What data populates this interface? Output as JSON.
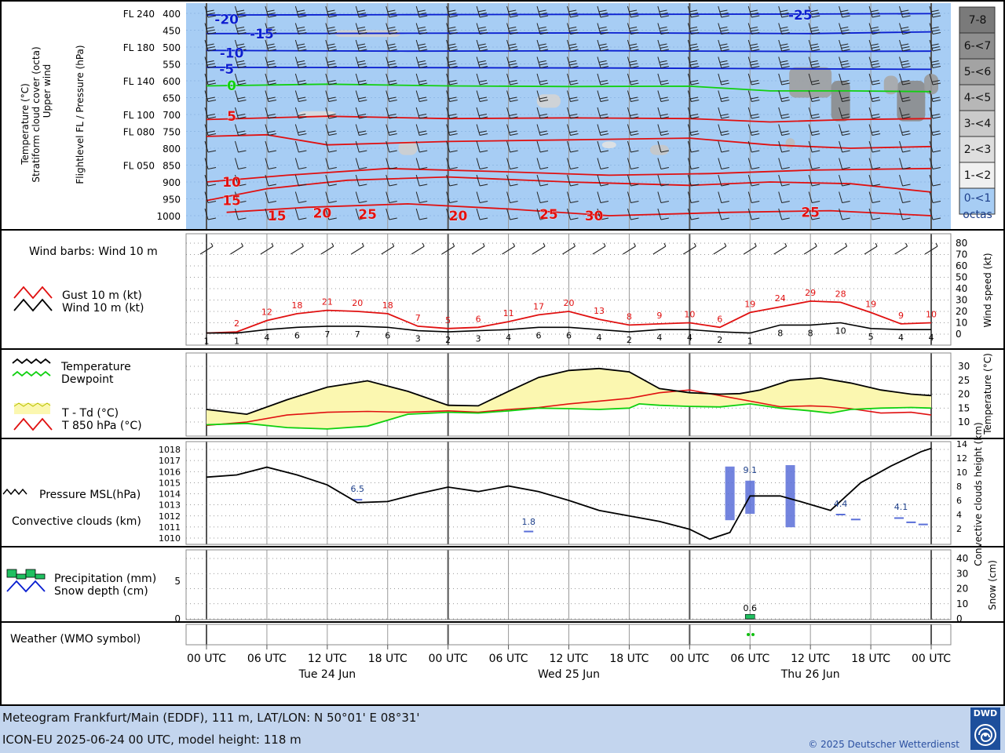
{
  "panels": {
    "upper": {
      "labels": [
        "Temperature (°C)",
        "Stratiform cloud cover (octa)",
        "Upper wind"
      ],
      "axis_label": "Flightlevel FL / Pressure (hPa)"
    },
    "wind": {
      "title": "Wind barbs: Wind 10 m",
      "legend_gust": "Gust 10 m (kt)",
      "legend_wind": "Wind 10 m (kt)",
      "axis_label": "Wind speed (kt)"
    },
    "temp": {
      "legend_t": "Temperature",
      "legend_td": "Dewpoint",
      "legend_spread": "T - Td (°C)",
      "legend_t850": "T 850 hPa (°C)",
      "axis_label": "Temperature (°C)"
    },
    "pressure": {
      "legend_p": "Pressure MSL(hPa)",
      "legend_conv": "Convective clouds (km)",
      "axis_label": "Convective clouds height (km)"
    },
    "precip": {
      "legend_precip": "Precipitation (mm)",
      "legend_snow": "Snow depth (cm)",
      "axis_label": "Snow (cm)"
    },
    "weather": {
      "title": "Weather (WMO symbol)"
    }
  },
  "time_axis": {
    "labels": [
      "00 UTC",
      "06 UTC",
      "12 UTC",
      "18 UTC",
      "00 UTC",
      "06 UTC",
      "12 UTC",
      "18 UTC",
      "00 UTC",
      "06 UTC",
      "12 UTC",
      "18 UTC",
      "00 UTC"
    ],
    "days": [
      "Tue 24 Jun",
      "Wed 25 Jun",
      "Thu 26 Jun"
    ]
  },
  "footer": {
    "line1": "Meteogram Frankfurt/Main (EDDF), 111 m, LAT/LON: N 50°01' E 08°31'",
    "line2": "ICON-EU 2025-06-24 00 UTC, model height: 118 m",
    "copyright": "© 2025 Deutscher Wetterdienst",
    "logo": "DWD"
  },
  "colors": {
    "sky": "#a7cdf4",
    "red": "#e01010",
    "green": "#10d010",
    "blue": "#0a1fd0",
    "spread": "#fbf7b0",
    "conv": "#5a6fd8",
    "precip": "#20c060"
  },
  "chart_data": [
    {
      "type": "line",
      "panel": "upper-air cross section",
      "pressure_levels": [
        400,
        450,
        500,
        550,
        600,
        650,
        700,
        750,
        800,
        850,
        900,
        950,
        1000
      ],
      "flight_levels": [
        {
          "p": 400,
          "fl": "FL 240"
        },
        {
          "p": 500,
          "fl": "FL 180"
        },
        {
          "p": 600,
          "fl": "FL 140"
        },
        {
          "p": 700,
          "fl": "FL 100"
        },
        {
          "p": 750,
          "fl": "FL 080"
        },
        {
          "p": 850,
          "fl": "FL 050"
        }
      ],
      "isotherm_labels": [
        "-20",
        "-15",
        "-10",
        "-5",
        "0",
        "5",
        "10",
        "15",
        "15",
        "20",
        "25",
        "20",
        "25",
        "30",
        "25",
        "-25"
      ],
      "cloud_scale": [
        "7-8",
        "6-<7",
        "5-<6",
        "4-<5",
        "3-<4",
        "2-<3",
        "1-<2",
        "0-<1",
        "octas"
      ],
      "cloud_colors": [
        "#7a7a7a",
        "#8e8e8e",
        "#a3a3a3",
        "#b7b7b7",
        "#cacaca",
        "#dedede",
        "#f0f0f0",
        "#a7cdf4"
      ]
    },
    {
      "type": "line",
      "panel": "wind 10 m",
      "x_hours": [
        0,
        6,
        12,
        18,
        24,
        30,
        36,
        42,
        48,
        54,
        60,
        66,
        72
      ],
      "y_ticks": [
        0,
        10,
        20,
        30,
        40,
        50,
        60,
        70,
        80
      ],
      "ylim": [
        0,
        80
      ],
      "gust": [
        {
          "h": 3,
          "v": 2
        },
        {
          "h": 6,
          "v": 12
        },
        {
          "h": 9,
          "v": 18
        },
        {
          "h": 12,
          "v": 21
        },
        {
          "h": 15,
          "v": 20
        },
        {
          "h": 18,
          "v": 18
        },
        {
          "h": 21,
          "v": 7
        },
        {
          "h": 24,
          "v": 5
        },
        {
          "h": 27,
          "v": 6
        },
        {
          "h": 30,
          "v": 11
        },
        {
          "h": 33,
          "v": 17
        },
        {
          "h": 36,
          "v": 20
        },
        {
          "h": 39,
          "v": 13
        },
        {
          "h": 42,
          "v": 8
        },
        {
          "h": 45,
          "v": 9
        },
        {
          "h": 48,
          "v": 10
        },
        {
          "h": 51,
          "v": 6
        },
        {
          "h": 54,
          "v": 19
        },
        {
          "h": 57,
          "v": 24
        },
        {
          "h": 60,
          "v": 29
        },
        {
          "h": 63,
          "v": 28
        },
        {
          "h": 66,
          "v": 19
        },
        {
          "h": 69,
          "v": 9
        },
        {
          "h": 72,
          "v": 10
        }
      ],
      "wind": [
        {
          "h": 0,
          "v": 1
        },
        {
          "h": 3,
          "v": 1
        },
        {
          "h": 6,
          "v": 4
        },
        {
          "h": 9,
          "v": 6
        },
        {
          "h": 12,
          "v": 7
        },
        {
          "h": 15,
          "v": 7
        },
        {
          "h": 18,
          "v": 6
        },
        {
          "h": 21,
          "v": 3
        },
        {
          "h": 24,
          "v": 2
        },
        {
          "h": 27,
          "v": 3
        },
        {
          "h": 30,
          "v": 4
        },
        {
          "h": 33,
          "v": 6
        },
        {
          "h": 36,
          "v": 6
        },
        {
          "h": 39,
          "v": 4
        },
        {
          "h": 42,
          "v": 2
        },
        {
          "h": 45,
          "v": 4
        },
        {
          "h": 48,
          "v": 4
        },
        {
          "h": 51,
          "v": 2
        },
        {
          "h": 54,
          "v": 1
        },
        {
          "h": 57,
          "v": 8
        },
        {
          "h": 60,
          "v": 8
        },
        {
          "h": 63,
          "v": 10
        },
        {
          "h": 66,
          "v": 5
        },
        {
          "h": 69,
          "v": 4
        },
        {
          "h": 72,
          "v": 4
        }
      ]
    },
    {
      "type": "area",
      "panel": "temperature",
      "y_ticks": [
        10,
        15,
        20,
        25,
        30
      ],
      "ylim": [
        7,
        33
      ],
      "temperature": [
        [
          0,
          14.5
        ],
        [
          4,
          12.8
        ],
        [
          8,
          18
        ],
        [
          12,
          22.5
        ],
        [
          16,
          24.8
        ],
        [
          20,
          21
        ],
        [
          24,
          16
        ],
        [
          27,
          15.8
        ],
        [
          30,
          21
        ],
        [
          33,
          26
        ],
        [
          36,
          28.5
        ],
        [
          39,
          29.2
        ],
        [
          42,
          28
        ],
        [
          45,
          22
        ],
        [
          48,
          20.5
        ],
        [
          51,
          20
        ],
        [
          53,
          20.2
        ],
        [
          55,
          21.5
        ],
        [
          58,
          25
        ],
        [
          61,
          25.8
        ],
        [
          64,
          24
        ],
        [
          67,
          21.5
        ],
        [
          70,
          20
        ],
        [
          72,
          19.5
        ]
      ],
      "dewpoint": [
        [
          0,
          9
        ],
        [
          4,
          9.5
        ],
        [
          8,
          8
        ],
        [
          12,
          7.5
        ],
        [
          16,
          8.5
        ],
        [
          20,
          12.8
        ],
        [
          24,
          13.5
        ],
        [
          27,
          13.2
        ],
        [
          30,
          14
        ],
        [
          33,
          15
        ],
        [
          36,
          14.8
        ],
        [
          39,
          14.5
        ],
        [
          42,
          15
        ],
        [
          43,
          16.5
        ],
        [
          45,
          16
        ],
        [
          48,
          15.6
        ],
        [
          51,
          15.4
        ],
        [
          54,
          16.5
        ],
        [
          57,
          15
        ],
        [
          60,
          14
        ],
        [
          62,
          13.2
        ],
        [
          64,
          14.5
        ],
        [
          67,
          15
        ],
        [
          70,
          15.2
        ],
        [
          72,
          15
        ]
      ],
      "t850": [
        [
          0,
          8.8
        ],
        [
          4,
          10
        ],
        [
          8,
          12.5
        ],
        [
          12,
          13.5
        ],
        [
          16,
          13.8
        ],
        [
          20,
          13.5
        ],
        [
          24,
          14
        ],
        [
          27,
          13.5
        ],
        [
          30,
          14.5
        ],
        [
          33,
          15.2
        ],
        [
          36,
          16.5
        ],
        [
          39,
          17.5
        ],
        [
          42,
          18.5
        ],
        [
          45,
          20.5
        ],
        [
          48,
          21.5
        ],
        [
          51,
          19.5
        ],
        [
          54,
          17.5
        ],
        [
          57,
          15.5
        ],
        [
          60,
          15.8
        ],
        [
          62,
          15.5
        ],
        [
          64,
          14.8
        ],
        [
          67,
          13.2
        ],
        [
          70,
          13.5
        ],
        [
          72,
          12.5
        ]
      ]
    },
    {
      "type": "line",
      "panel": "pressure and convective clouds",
      "p_ticks": [
        1010,
        1011,
        1012,
        1013,
        1014,
        1015,
        1016,
        1017,
        1018
      ],
      "ylim": [
        1009.5,
        1018.5
      ],
      "conv_ticks": [
        2,
        4,
        6,
        8,
        10,
        12,
        14
      ],
      "pressure": [
        [
          0,
          1015.5
        ],
        [
          3,
          1015.7
        ],
        [
          6,
          1016.4
        ],
        [
          9,
          1015.7
        ],
        [
          12,
          1014.8
        ],
        [
          15,
          1013.2
        ],
        [
          18,
          1013.3
        ],
        [
          21,
          1014
        ],
        [
          24,
          1014.6
        ],
        [
          27,
          1014.2
        ],
        [
          30,
          1014.7
        ],
        [
          33,
          1014.2
        ],
        [
          36,
          1013.4
        ],
        [
          39,
          1012.5
        ],
        [
          42,
          1012
        ],
        [
          45,
          1011.5
        ],
        [
          48,
          1010.8
        ],
        [
          50,
          1009.9
        ],
        [
          52,
          1010.5
        ],
        [
          54,
          1013.8
        ],
        [
          57,
          1013.8
        ],
        [
          59,
          1013.3
        ],
        [
          62,
          1012.5
        ],
        [
          65,
          1015
        ],
        [
          68,
          1016.5
        ],
        [
          71,
          1017.8
        ],
        [
          72,
          1018.1
        ]
      ],
      "conv_labels": [
        {
          "h": 15,
          "v": "6.5"
        },
        {
          "h": 32,
          "v": "1.8"
        },
        {
          "h": 54,
          "v": "9.1"
        },
        {
          "h": 63,
          "v": "4.4"
        },
        {
          "h": 69,
          "v": "4.1"
        }
      ],
      "conv_bars": [
        [
          52,
          3.2,
          10.8
        ],
        [
          54,
          4.1,
          8.8
        ],
        [
          58,
          2.2,
          11
        ]
      ]
    },
    {
      "type": "bar",
      "panel": "precipitation",
      "y_ticks_left": [
        0,
        5
      ],
      "y_ticks_right": [
        0,
        10,
        20,
        30,
        40
      ],
      "precip": [
        [
          54,
          0.6
        ]
      ],
      "precip_label": "0.6"
    }
  ]
}
